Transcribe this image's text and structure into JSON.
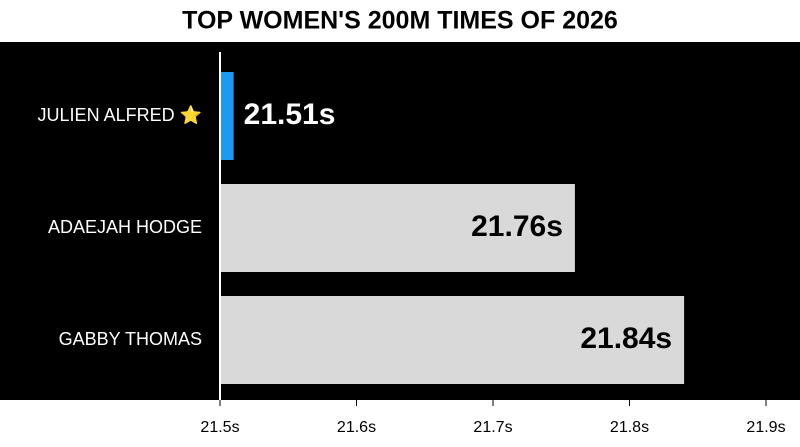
{
  "chart_data": {
    "type": "bar",
    "orientation": "horizontal",
    "title": "TOP WOMEN'S 200M TIMES OF 2026",
    "categories": [
      "JULIEN ALFRED ⭐",
      "ADAEJAH HODGE",
      "GABBY THOMAS"
    ],
    "values": [
      21.51,
      21.76,
      21.84
    ],
    "value_labels": [
      "21.51s",
      "21.76s",
      "21.84s"
    ],
    "colors": [
      "#1a9bf0",
      "#d9d9d9",
      "#d9d9d9"
    ],
    "xlim": [
      21.5,
      21.9
    ],
    "xticks": [
      {
        "value": 21.5,
        "label": "21.5s"
      },
      {
        "value": 21.6,
        "label": "21.6s"
      },
      {
        "value": 21.7,
        "label": "21.7s"
      },
      {
        "value": 21.8,
        "label": "21.8s"
      },
      {
        "value": 21.9,
        "label": "21.9s"
      }
    ]
  }
}
